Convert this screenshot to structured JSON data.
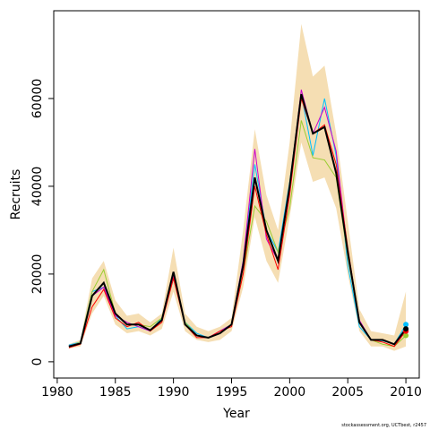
{
  "chart_data": {
    "type": "line",
    "x_label": "Year",
    "y_label": "Recruits",
    "footnote": "stockassessment.org, UCTbest, r2457",
    "x": [
      1981,
      1982,
      1983,
      1984,
      1985,
      1986,
      1987,
      1988,
      1989,
      1990,
      1991,
      1992,
      1993,
      1994,
      1995,
      1996,
      1997,
      1998,
      1999,
      2000,
      2001,
      2002,
      2003,
      2004,
      2005,
      2006,
      2007,
      2008,
      2009,
      2010
    ],
    "xlim": [
      1979.7,
      2011.15
    ],
    "xticks": [
      1980,
      1985,
      1990,
      1995,
      2000,
      2005,
      2010
    ],
    "ylim": [
      -3700,
      80000
    ],
    "yticks": [
      0,
      20000,
      40000,
      60000
    ],
    "band": {
      "color": "#f5deb3",
      "upper": [
        4000,
        5000,
        19000,
        23000,
        14000,
        10500,
        11000,
        9000,
        11000,
        26000,
        11000,
        8000,
        7000,
        8000,
        10000,
        30000,
        53000,
        38000,
        30000,
        50000,
        77000,
        65000,
        67500,
        52000,
        32000,
        12000,
        7000,
        6500,
        6000,
        16000
      ],
      "lower": [
        3000,
        3500,
        11000,
        15000,
        8500,
        6500,
        7000,
        6000,
        7500,
        16000,
        7000,
        5000,
        4500,
        5000,
        7000,
        17000,
        33000,
        23000,
        18000,
        33000,
        50000,
        41000,
        42000,
        35000,
        20000,
        7000,
        3500,
        3500,
        2500,
        3500
      ]
    },
    "series": [
      {
        "color": "#00bfff",
        "values": [
          3800,
          4500,
          16000,
          17000,
          10500,
          7500,
          8000,
          7000,
          10000,
          19000,
          9000,
          6500,
          5500,
          7000,
          8500,
          23000,
          45000,
          30000,
          25000,
          41000,
          61000,
          47000,
          60000,
          47000,
          22000,
          8000,
          5000,
          4800,
          4000,
          8500
        ]
      },
      {
        "color": "#9acd32",
        "values": [
          3500,
          4500,
          16000,
          21000,
          11000,
          8500,
          8500,
          8000,
          10000,
          19000,
          9000,
          6000,
          5500,
          6500,
          8500,
          20000,
          35500,
          32000,
          25000,
          35000,
          55000,
          46500,
          46000,
          42000,
          24000,
          9000,
          5000,
          4000,
          3500,
          6000
        ]
      },
      {
        "color": "#cc00cc",
        "values": [
          3600,
          4300,
          15000,
          17000,
          10500,
          9000,
          8000,
          7000,
          9500,
          19500,
          8500,
          6000,
          5500,
          7000,
          8500,
          23000,
          48500,
          28000,
          23000,
          40000,
          62000,
          52000,
          58000,
          48000,
          25000,
          9500,
          5000,
          5000,
          4000,
          7000
        ]
      },
      {
        "color": "#ff0000",
        "values": [
          3200,
          4000,
          12500,
          16500,
          10000,
          8000,
          9000,
          7000,
          9000,
          19000,
          8500,
          5500,
          5500,
          7000,
          8000,
          20000,
          40000,
          29000,
          21000,
          38000,
          60000,
          52000,
          54000,
          45000,
          26000,
          9000,
          5000,
          4500,
          3500,
          7000
        ]
      },
      {
        "color": "#000000",
        "values": [
          3500,
          4200,
          15000,
          18000,
          11000,
          8500,
          8500,
          7200,
          9500,
          20500,
          8500,
          6000,
          5500,
          6500,
          8500,
          22000,
          42000,
          30000,
          23000,
          40000,
          61000,
          52000,
          53500,
          43000,
          25000,
          9000,
          5000,
          5000,
          4000,
          7500
        ]
      }
    ]
  }
}
